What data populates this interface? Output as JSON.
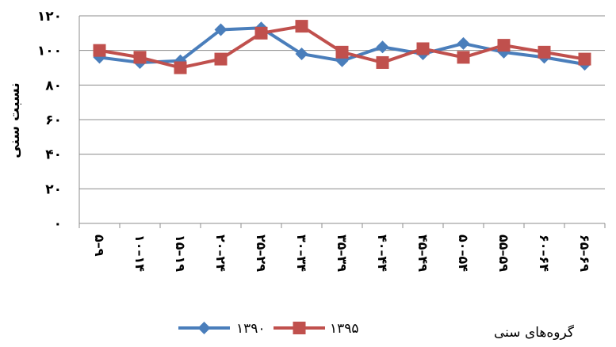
{
  "chart_data": {
    "type": "line",
    "ylabel": "نسبت سنی",
    "xlabel": "گروه‌های سنی",
    "ylim": [
      0,
      120
    ],
    "yticks": [
      0,
      20,
      40,
      60,
      80,
      100,
      120
    ],
    "ytick_labels": [
      "۰",
      "۲۰",
      "۴۰",
      "۶۰",
      "۸۰",
      "۱۰۰",
      "۱۲۰"
    ],
    "categories": [
      "۵–۹",
      "۱۰–۱۴",
      "۱۵–۱۹",
      "۲۰–۲۴",
      "۲۵–۲۹",
      "۳۰–۳۴",
      "۳۵–۳۹",
      "۴۰–۴۴",
      "۴۵–۴۹",
      "۵۰–۵۴",
      "۵۵–۵۹",
      "۶۰–۶۴",
      "۶۵–۶۹"
    ],
    "series": [
      {
        "name": "۱۳۹۰",
        "color": "#4a7ebb",
        "marker": "diamond",
        "values": [
          96,
          93,
          94,
          112,
          113,
          98,
          94,
          102,
          98,
          104,
          99,
          96,
          92
        ]
      },
      {
        "name": "۱۳۹۵",
        "color": "#c0504d",
        "marker": "square",
        "values": [
          100,
          96,
          90,
          95,
          110,
          114,
          99,
          93,
          101,
          96,
          103,
          99,
          95
        ]
      }
    ],
    "grid": true,
    "legend_position": "bottom"
  }
}
